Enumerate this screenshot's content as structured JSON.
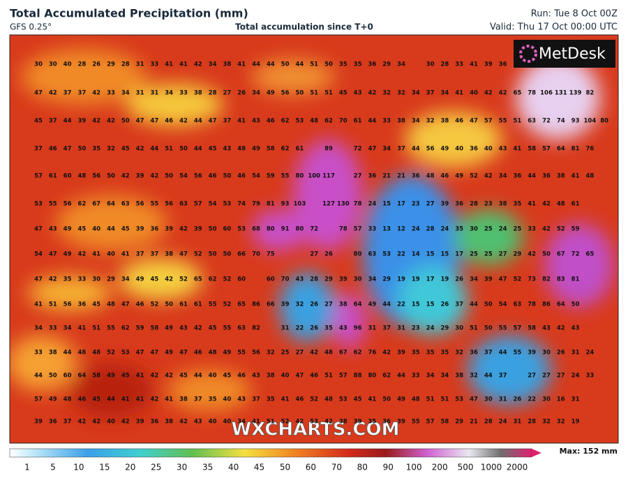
{
  "header": {
    "title": "Total Accumulated Precipitation (mm)",
    "model": "GFS 0.25°",
    "subtitle": "Total accumulation since T+0",
    "run": "Run: Tue 8 Oct 00Z",
    "valid": "Valid: Thu 17 Oct 00:00 UTC"
  },
  "logo": "MetDesk",
  "watermark": "WXCHARTS.COM",
  "grid": {
    "rows": [
      [
        30,
        30,
        40,
        28,
        26,
        29,
        28,
        31,
        33,
        41,
        41,
        42,
        34,
        38,
        41,
        44,
        44,
        50,
        44,
        51,
        50,
        35,
        35,
        36,
        29,
        34,
        null,
        30,
        28,
        33,
        41,
        39,
        36,
        null,
        null,
        null,
        null,
        null,
        null,
        null
      ],
      [
        47,
        42,
        37,
        37,
        42,
        33,
        34,
        31,
        31,
        34,
        33,
        38,
        28,
        27,
        26,
        34,
        49,
        56,
        50,
        51,
        51,
        45,
        43,
        42,
        32,
        32,
        34,
        37,
        34,
        41,
        40,
        42,
        42,
        65,
        78,
        106,
        131,
        139,
        82,
        null
      ],
      [
        45,
        37,
        44,
        39,
        42,
        42,
        50,
        47,
        47,
        46,
        42,
        44,
        47,
        37,
        41,
        43,
        46,
        62,
        53,
        48,
        62,
        70,
        61,
        44,
        33,
        38,
        34,
        32,
        38,
        46,
        47,
        57,
        55,
        51,
        63,
        72,
        74,
        93,
        104,
        80
      ],
      [
        37,
        46,
        47,
        50,
        35,
        32,
        45,
        42,
        44,
        51,
        50,
        44,
        45,
        43,
        48,
        49,
        58,
        62,
        61,
        null,
        89,
        null,
        72,
        47,
        34,
        37,
        44,
        56,
        49,
        40,
        36,
        40,
        43,
        41,
        58,
        57,
        64,
        81,
        76,
        null
      ],
      [
        57,
        61,
        60,
        48,
        56,
        50,
        42,
        39,
        42,
        50,
        54,
        56,
        46,
        50,
        46,
        54,
        59,
        55,
        80,
        100,
        117,
        null,
        27,
        36,
        21,
        21,
        36,
        48,
        46,
        49,
        52,
        42,
        34,
        36,
        44,
        36,
        38,
        41,
        48,
        null
      ],
      [
        53,
        55,
        56,
        62,
        67,
        64,
        63,
        56,
        55,
        56,
        63,
        57,
        54,
        53,
        74,
        79,
        81,
        93,
        103,
        null,
        127,
        130,
        78,
        24,
        15,
        17,
        23,
        27,
        39,
        36,
        28,
        23,
        38,
        35,
        41,
        42,
        48,
        61,
        null,
        null
      ],
      [
        47,
        43,
        49,
        45,
        40,
        44,
        45,
        39,
        36,
        39,
        42,
        39,
        50,
        60,
        53,
        68,
        80,
        91,
        80,
        72,
        null,
        78,
        57,
        33,
        13,
        12,
        24,
        28,
        24,
        35,
        30,
        25,
        24,
        25,
        33,
        42,
        52,
        59,
        null,
        null
      ],
      [
        54,
        47,
        49,
        42,
        41,
        40,
        41,
        37,
        37,
        38,
        47,
        52,
        50,
        50,
        66,
        70,
        75,
        null,
        null,
        27,
        26,
        null,
        80,
        63,
        53,
        22,
        14,
        15,
        15,
        17,
        25,
        25,
        27,
        29,
        42,
        50,
        67,
        72,
        65,
        null
      ],
      [
        47,
        42,
        35,
        33,
        30,
        29,
        34,
        49,
        45,
        42,
        52,
        65,
        62,
        52,
        60,
        null,
        60,
        70,
        43,
        28,
        29,
        39,
        30,
        34,
        29,
        19,
        19,
        17,
        19,
        26,
        34,
        39,
        47,
        52,
        73,
        82,
        83,
        81,
        null,
        null
      ],
      [
        41,
        51,
        56,
        36,
        45,
        48,
        47,
        46,
        52,
        50,
        61,
        61,
        55,
        52,
        65,
        86,
        66,
        39,
        32,
        26,
        27,
        38,
        64,
        49,
        44,
        22,
        15,
        15,
        26,
        37,
        44,
        50,
        54,
        63,
        78,
        86,
        64,
        50,
        null,
        null
      ],
      [
        34,
        33,
        34,
        41,
        51,
        55,
        62,
        59,
        58,
        49,
        43,
        42,
        45,
        55,
        63,
        82,
        null,
        31,
        22,
        26,
        35,
        43,
        96,
        31,
        37,
        31,
        23,
        24,
        29,
        30,
        51,
        50,
        55,
        57,
        58,
        43,
        42,
        43,
        null,
        null
      ],
      [
        33,
        38,
        44,
        48,
        48,
        52,
        53,
        47,
        47,
        49,
        47,
        46,
        48,
        49,
        55,
        56,
        32,
        25,
        27,
        42,
        48,
        67,
        62,
        76,
        42,
        39,
        35,
        35,
        35,
        32,
        36,
        37,
        44,
        55,
        39,
        30,
        26,
        31,
        24,
        null
      ],
      [
        44,
        50,
        60,
        64,
        58,
        49,
        45,
        41,
        42,
        42,
        45,
        44,
        40,
        45,
        46,
        43,
        38,
        40,
        47,
        46,
        51,
        57,
        88,
        80,
        62,
        44,
        33,
        34,
        34,
        38,
        32,
        44,
        37,
        null,
        27,
        27,
        27,
        24,
        33,
        null
      ],
      [
        57,
        49,
        48,
        46,
        45,
        44,
        41,
        41,
        42,
        41,
        38,
        37,
        35,
        40,
        43,
        37,
        35,
        41,
        46,
        52,
        48,
        53,
        45,
        41,
        50,
        49,
        48,
        51,
        51,
        53,
        47,
        30,
        31,
        26,
        22,
        30,
        16,
        31,
        null,
        null
      ],
      [
        39,
        36,
        37,
        42,
        42,
        40,
        42,
        39,
        36,
        38,
        42,
        43,
        40,
        40,
        34,
        41,
        51,
        52,
        42,
        53,
        42,
        38,
        39,
        35,
        36,
        39,
        55,
        57,
        58,
        29,
        21,
        28,
        24,
        31,
        28,
        32,
        32,
        19,
        null,
        null
      ]
    ]
  },
  "colorbar": {
    "labels": [
      1,
      5,
      10,
      15,
      20,
      25,
      30,
      35,
      40,
      45,
      50,
      60,
      70,
      80,
      90,
      100,
      200,
      500,
      1000,
      2000
    ],
    "max": "Max: 152 mm"
  }
}
